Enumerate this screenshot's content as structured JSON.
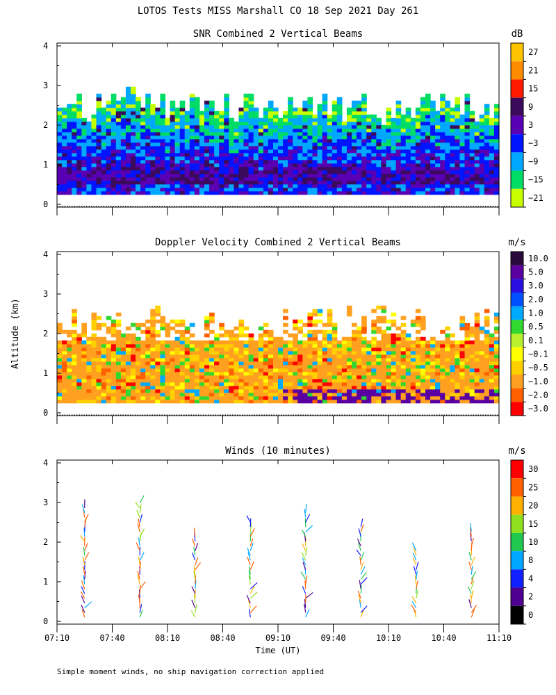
{
  "chart_data": [
    {
      "type": "heatmap",
      "title": "SNR Combined 2 Vertical Beams",
      "ylabel": "Altitude (km)",
      "ylim": [
        0,
        4
      ],
      "y_ticks": [
        "0",
        "1",
        "2",
        "3",
        "4"
      ],
      "xlim_minutes": [
        0,
        240
      ],
      "colorbar_unit": "dB",
      "colorbar_labels": [
        "27",
        "21",
        "15",
        "9",
        "3",
        "−3",
        "−9",
        "−15",
        "−21"
      ],
      "colorbar_colors": [
        "#ffc400",
        "#ff8c00",
        "#ff1a00",
        "#3b0a5c",
        "#5a00b4",
        "#0014ff",
        "#00a8ff",
        "#00dd66",
        "#c8ff00"
      ],
      "field_profile_levels_dB": [
        {
          "alt_km": 0.3,
          "level": 3
        },
        {
          "alt_km": 0.6,
          "level": -3
        },
        {
          "alt_km": 1.2,
          "level": -9
        },
        {
          "alt_km": 1.8,
          "level": -15
        },
        {
          "alt_km": 2.4,
          "level": -21
        }
      ],
      "echo_top_km": 2.6
    },
    {
      "type": "heatmap",
      "title": "Doppler Velocity Combined 2 Vertical Beams",
      "ylim": [
        0,
        4
      ],
      "y_ticks": [
        "0",
        "1",
        "2",
        "3",
        "4"
      ],
      "xlim_minutes": [
        0,
        240
      ],
      "colorbar_unit": "m/s",
      "colorbar_labels": [
        "10.0",
        "5.0",
        "3.0",
        "2.0",
        "1.0",
        "0.5",
        "0.1",
        "−0.1",
        "−0.5",
        "−1.0",
        "−2.0",
        "−3.0"
      ],
      "colorbar_colors": [
        "#2a0a3a",
        "#5a00a0",
        "#2a10e0",
        "#0050ff",
        "#00aaff",
        "#30d830",
        "#b8f030",
        "#ffff00",
        "#ffd000",
        "#ffa020",
        "#ff6000",
        "#ff0000"
      ],
      "dominant_value_m_s": -0.5,
      "echo_top_km": 2.6
    },
    {
      "type": "scatter",
      "title": "Winds (10 minutes)",
      "ylim": [
        0,
        4
      ],
      "y_ticks": [
        "0",
        "1",
        "2",
        "3",
        "4"
      ],
      "x_ticks": [
        "07:10",
        "07:40",
        "08:10",
        "08:40",
        "09:10",
        "09:40",
        "10:10",
        "10:40",
        "11:10"
      ],
      "xlabel": "Time (UT)",
      "colorbar_unit": "m/s",
      "colorbar_labels": [
        "30",
        "25",
        "20",
        "15",
        "10",
        "8",
        "4",
        "2",
        "0"
      ],
      "colorbar_colors": [
        "#ff0000",
        "#ff6000",
        "#ffb000",
        "#90e020",
        "#20c850",
        "#00a8ff",
        "#1020ff",
        "#500090",
        "#000000"
      ],
      "wind_profiles": [
        {
          "minute": 15,
          "top_km": 2.9
        },
        {
          "minute": 45,
          "top_km": 3.0
        },
        {
          "minute": 75,
          "top_km": 2.2
        },
        {
          "minute": 105,
          "top_km": 2.6
        },
        {
          "minute": 135,
          "top_km": 2.8
        },
        {
          "minute": 165,
          "top_km": 2.5
        },
        {
          "minute": 195,
          "top_km": 1.9
        },
        {
          "minute": 225,
          "top_km": 2.3
        }
      ]
    }
  ],
  "figure": {
    "title": "LOTOS Tests MISS Marshall CO  18 Sep 2021 Day 261",
    "ylabel": "Altitude (km)",
    "footnote": "Simple moment winds, no ship navigation correction applied"
  }
}
